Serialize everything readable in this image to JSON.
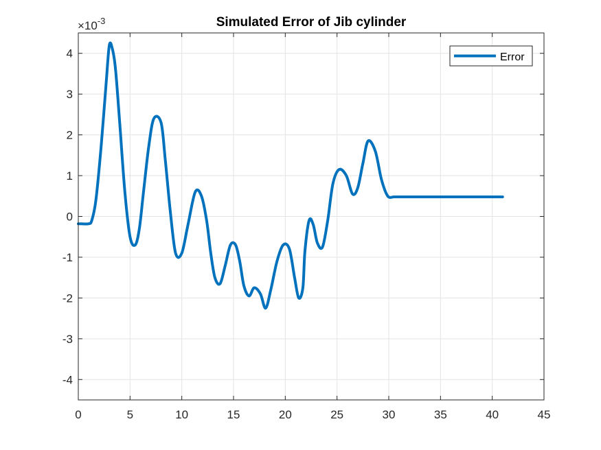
{
  "chart_data": {
    "type": "line",
    "title": "Simulated Error of Jib cylinder",
    "xlabel": "",
    "ylabel": "",
    "xlim": [
      0,
      45
    ],
    "ylim": [
      -4.5,
      4.5
    ],
    "x_ticks": [
      0,
      5,
      10,
      15,
      20,
      25,
      30,
      35,
      40,
      45
    ],
    "y_ticks": [
      -4,
      -3,
      -2,
      -1,
      0,
      1,
      2,
      3,
      4
    ],
    "y_exponent": {
      "base": "×10",
      "power": "-3"
    },
    "grid": true,
    "legend_position": "top-right",
    "series": [
      {
        "name": "Error",
        "color": "#0072BD",
        "x": [
          0,
          0.1,
          0.3,
          1.0,
          1.3,
          1.7,
          2.2,
          2.7,
          3.0,
          3.3,
          3.6,
          4.0,
          4.5,
          5.0,
          5.5,
          5.9,
          6.3,
          6.8,
          7.3,
          8.0,
          8.4,
          8.9,
          9.4,
          10.0,
          10.6,
          11.3,
          11.9,
          12.4,
          12.8,
          13.2,
          13.7,
          14.2,
          14.7,
          15.2,
          15.6,
          16.0,
          16.5,
          17.0,
          17.6,
          18.1,
          18.6,
          19.2,
          19.8,
          20.4,
          20.9,
          21.3,
          21.7,
          21.9,
          22.3,
          22.7,
          23.1,
          23.6,
          24.1,
          24.6,
          25.2,
          25.9,
          26.5,
          27.0,
          27.5,
          28.0,
          28.7,
          29.3,
          29.9,
          30.5,
          31.0,
          31.6,
          32.2,
          32.9,
          33.5,
          34.0,
          34.5,
          35.0,
          35.7,
          36.3,
          36.9,
          37.5,
          38.0,
          38.6,
          39.1,
          39.7,
          40.2,
          40.6,
          41.0
        ],
        "values": [
          -0.18,
          -0.18,
          -0.18,
          -0.18,
          -0.1,
          0.4,
          1.7,
          3.3,
          4.2,
          4.1,
          3.6,
          2.3,
          0.6,
          -0.5,
          -0.7,
          -0.3,
          0.6,
          1.7,
          2.4,
          2.3,
          1.4,
          0.1,
          -0.9,
          -0.9,
          -0.2,
          0.6,
          0.5,
          -0.1,
          -0.9,
          -1.5,
          -1.65,
          -1.2,
          -0.7,
          -0.7,
          -1.1,
          -1.7,
          -1.95,
          -1.75,
          -1.9,
          -2.25,
          -1.8,
          -1.1,
          -0.7,
          -0.8,
          -1.5,
          -2.0,
          -1.75,
          -0.85,
          -0.1,
          -0.2,
          -0.65,
          -0.75,
          -0.1,
          0.8,
          1.15,
          1.0,
          0.55,
          0.7,
          1.3,
          1.85,
          1.6,
          0.9,
          0.5,
          0.48,
          0.48,
          0.48,
          0.48,
          0.48,
          0.48,
          0.48,
          0.48,
          0.48,
          0.48,
          0.48,
          0.48,
          0.48,
          0.48,
          0.48,
          0.48,
          0.48,
          0.48,
          0.48,
          0.48
        ]
      }
    ]
  }
}
